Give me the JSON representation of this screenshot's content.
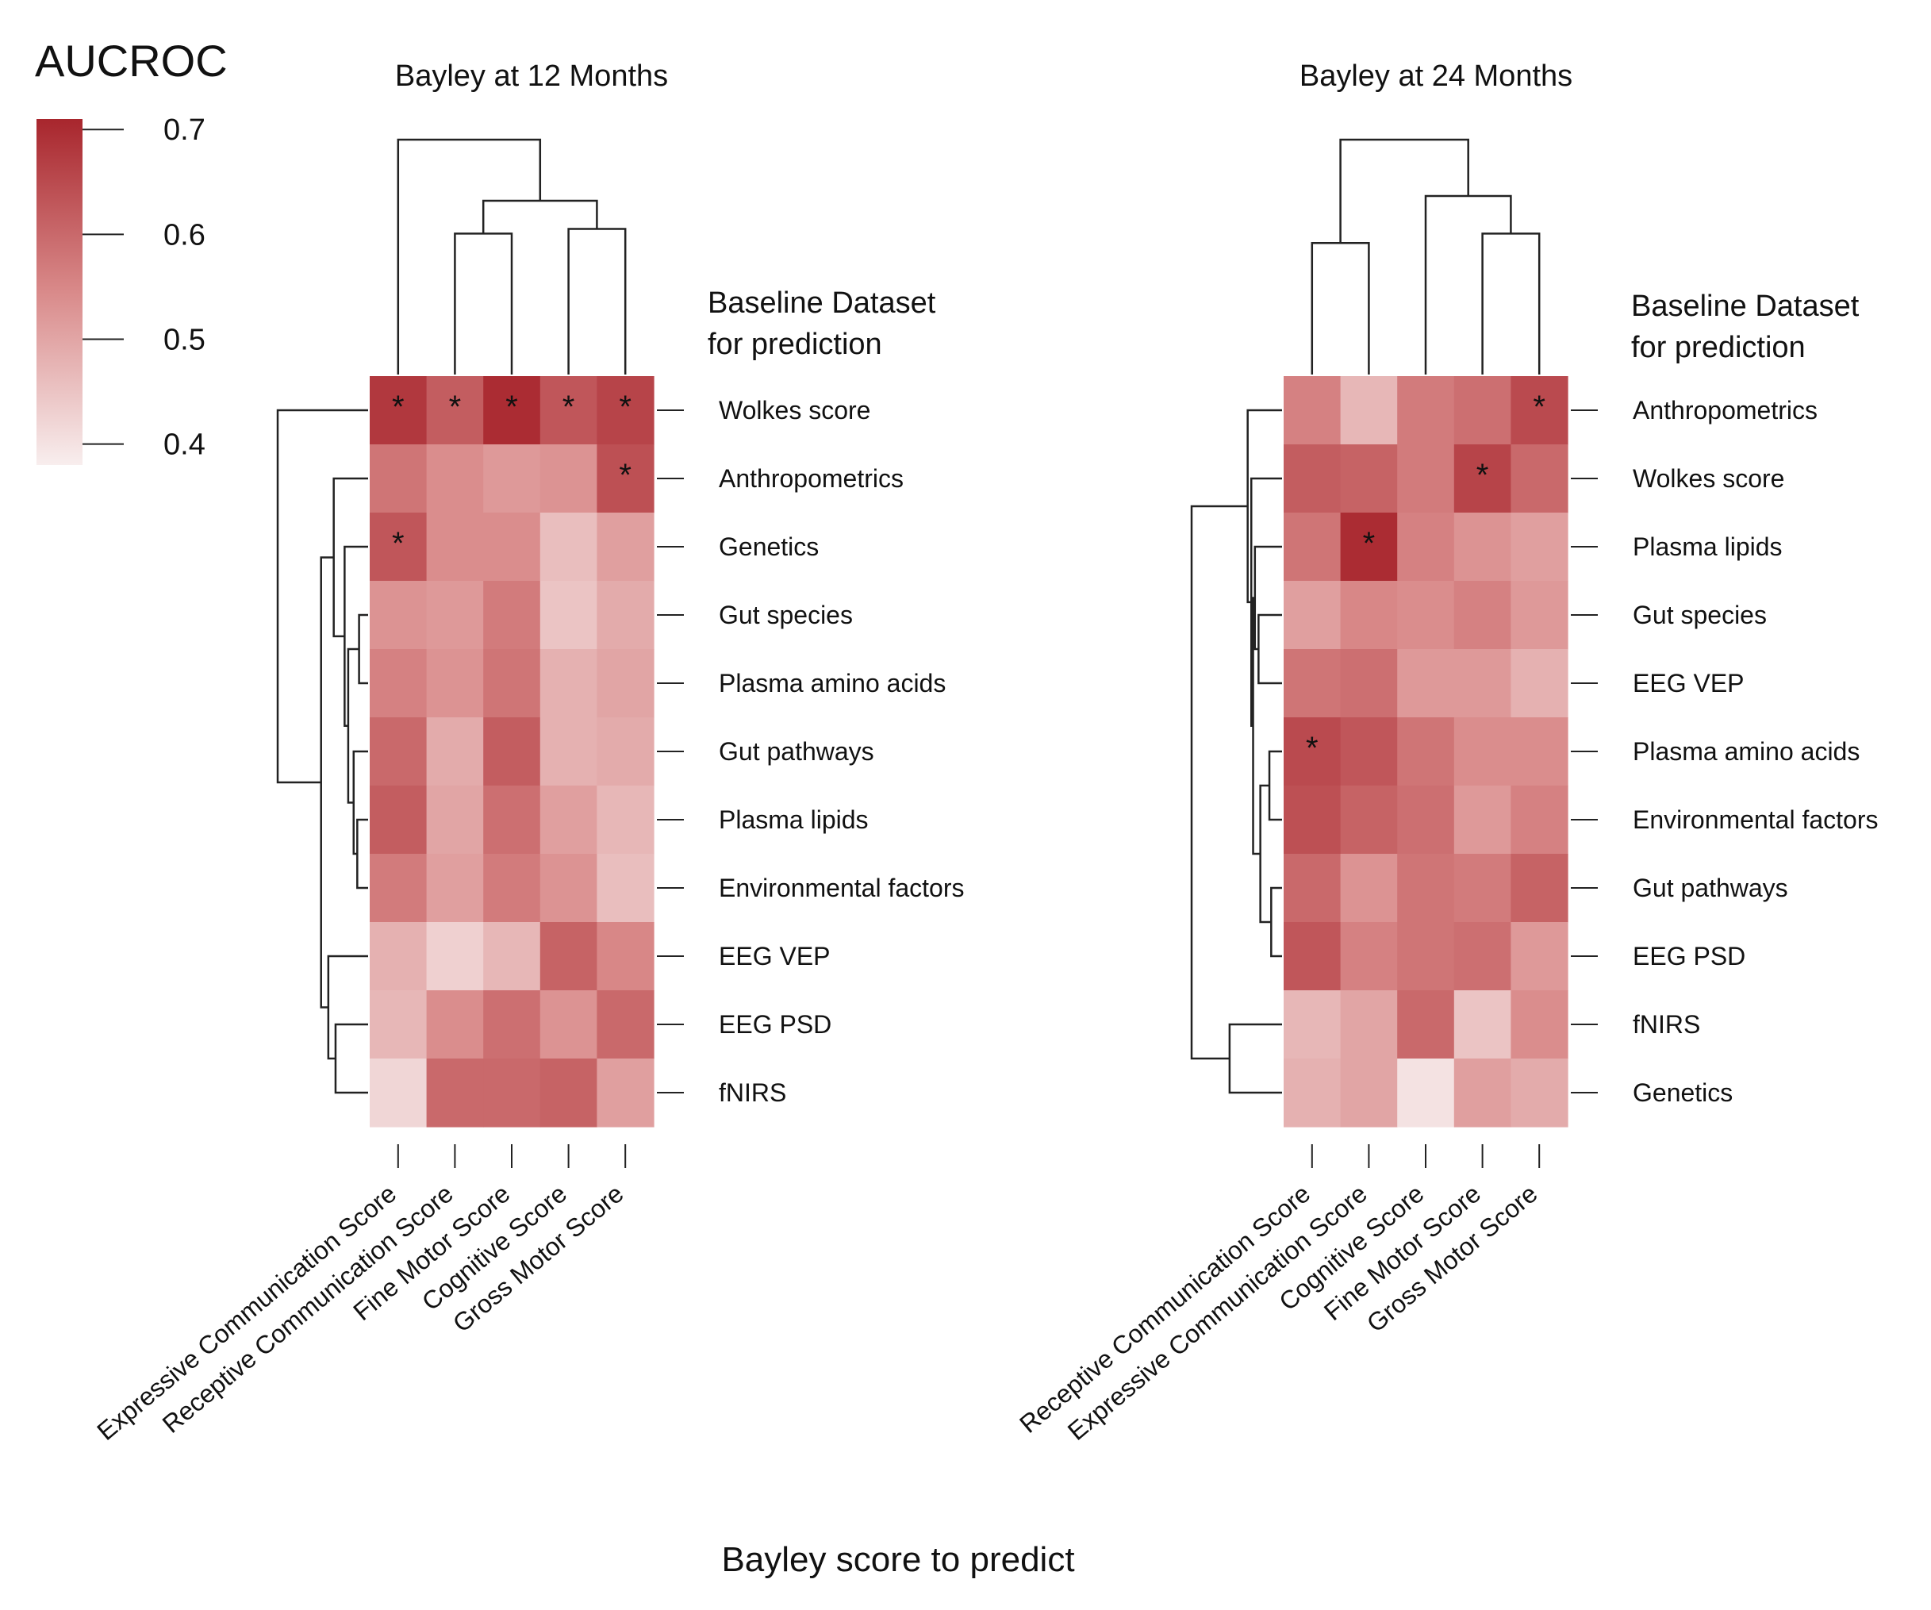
{
  "colors": {
    "low": "#f8eeee",
    "mid": "#d98a8a",
    "high": "#a8262d",
    "text": "#111111",
    "line": "#222222"
  },
  "legend": {
    "title": "AUCROC",
    "ticks": [
      "0.7",
      "0.6",
      "0.5",
      "0.4"
    ],
    "range": [
      0.38,
      0.71
    ]
  },
  "x_axis_label": "Bayley score to predict",
  "chart_data": [
    {
      "type": "heatmap",
      "title": "Bayley at 12 Months",
      "row_header": [
        "Baseline Dataset",
        "for prediction"
      ],
      "columns": [
        "Expressive Communication Score",
        "Receptive Communication Score",
        "Fine Motor Score",
        "Cognitive Score",
        "Gross Motor Score"
      ],
      "rows": [
        "Wolkes score",
        "Anthropometrics",
        "Genetics",
        "Gut species",
        "Plasma amino acids",
        "Gut pathways",
        "Plasma lipids",
        "Environmental factors",
        "EEG VEP",
        "EEG PSD",
        "fNIRS"
      ],
      "values": [
        [
          0.68,
          0.62,
          0.7,
          0.63,
          0.66
        ],
        [
          0.58,
          0.54,
          0.52,
          0.53,
          0.64
        ],
        [
          0.63,
          0.54,
          0.54,
          0.46,
          0.51
        ],
        [
          0.53,
          0.52,
          0.57,
          0.45,
          0.49
        ],
        [
          0.56,
          0.53,
          0.58,
          0.48,
          0.5
        ],
        [
          0.6,
          0.49,
          0.62,
          0.48,
          0.49
        ],
        [
          0.62,
          0.5,
          0.59,
          0.51,
          0.47
        ],
        [
          0.57,
          0.51,
          0.57,
          0.53,
          0.46
        ],
        [
          0.48,
          0.43,
          0.47,
          0.61,
          0.55
        ],
        [
          0.47,
          0.54,
          0.59,
          0.53,
          0.6
        ],
        [
          0.42,
          0.6,
          0.6,
          0.61,
          0.51
        ]
      ],
      "significant": [
        [
          0,
          0
        ],
        [
          0,
          1
        ],
        [
          0,
          2
        ],
        [
          0,
          3
        ],
        [
          0,
          4
        ],
        [
          1,
          4
        ],
        [
          2,
          0
        ]
      ],
      "star": "*"
    },
    {
      "type": "heatmap",
      "title": "Bayley at 24 Months",
      "row_header": [
        "Baseline Dataset",
        "for prediction"
      ],
      "columns": [
        "Receptive Communication Score",
        "Expressive Communication Score",
        "Cognitive Score",
        "Fine Motor Score",
        "Gross Motor Score"
      ],
      "rows": [
        "Anthropometrics",
        "Wolkes score",
        "Plasma lipids",
        "Gut species",
        "EEG VEP",
        "Plasma amino acids",
        "Environmental factors",
        "Gut pathways",
        "EEG PSD",
        "fNIRS",
        "Genetics"
      ],
      "values": [
        [
          0.56,
          0.47,
          0.57,
          0.59,
          0.65
        ],
        [
          0.62,
          0.61,
          0.57,
          0.66,
          0.6
        ],
        [
          0.58,
          0.7,
          0.56,
          0.53,
          0.51
        ],
        [
          0.51,
          0.55,
          0.54,
          0.56,
          0.52
        ],
        [
          0.58,
          0.59,
          0.52,
          0.52,
          0.48
        ],
        [
          0.65,
          0.63,
          0.58,
          0.54,
          0.54
        ],
        [
          0.64,
          0.61,
          0.59,
          0.52,
          0.56
        ],
        [
          0.6,
          0.53,
          0.58,
          0.57,
          0.61
        ],
        [
          0.63,
          0.56,
          0.58,
          0.59,
          0.52
        ],
        [
          0.47,
          0.5,
          0.6,
          0.45,
          0.54
        ],
        [
          0.48,
          0.5,
          0.4,
          0.51,
          0.49
        ]
      ],
      "significant": [
        [
          0,
          4
        ],
        [
          1,
          3
        ],
        [
          2,
          1
        ],
        [
          5,
          0
        ]
      ],
      "star": "*"
    }
  ]
}
